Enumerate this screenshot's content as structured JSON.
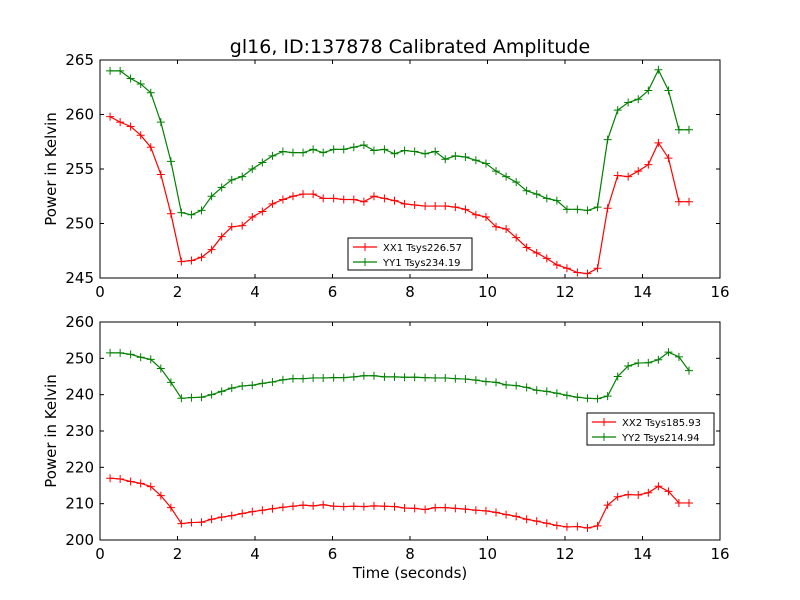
{
  "title": "gl16, ID:137878 Calibrated Amplitude",
  "chart_data": [
    {
      "type": "line",
      "ylabel": "Power in Kelvin",
      "xlabel": "",
      "xlim": [
        0,
        16
      ],
      "ylim": [
        245,
        265
      ],
      "xticks": [
        "0",
        "2",
        "4",
        "6",
        "8",
        "10",
        "12",
        "14",
        "16"
      ],
      "yticks": [
        "245",
        "250",
        "255",
        "260",
        "265"
      ],
      "legend_position": "lower-center",
      "x": [
        0.26,
        0.52,
        0.79,
        1.05,
        1.31,
        1.57,
        1.83,
        2.1,
        2.36,
        2.62,
        2.88,
        3.14,
        3.4,
        3.67,
        3.93,
        4.19,
        4.45,
        4.72,
        4.98,
        5.24,
        5.5,
        5.76,
        6.03,
        6.29,
        6.55,
        6.81,
        7.07,
        7.34,
        7.6,
        7.86,
        8.12,
        8.39,
        8.65,
        8.91,
        9.17,
        9.43,
        9.7,
        9.96,
        10.22,
        10.48,
        10.74,
        11.01,
        11.27,
        11.53,
        11.79,
        12.05,
        12.32,
        12.58,
        12.84,
        13.1,
        13.36,
        13.63,
        13.89,
        14.15,
        14.41,
        14.67,
        14.94,
        15.2
      ],
      "series": [
        {
          "name": "XX1 Tsys226.57",
          "color": "#ff0000",
          "values": [
            259.8,
            259.3,
            258.9,
            258.1,
            257.0,
            254.5,
            250.9,
            246.5,
            246.6,
            246.9,
            247.6,
            248.8,
            249.7,
            249.8,
            250.6,
            251.1,
            251.8,
            252.2,
            252.5,
            252.7,
            252.7,
            252.3,
            252.3,
            252.2,
            252.2,
            252.0,
            252.5,
            252.3,
            252.1,
            251.8,
            251.7,
            251.6,
            251.6,
            251.6,
            251.5,
            251.3,
            250.8,
            250.6,
            249.7,
            249.5,
            248.7,
            247.8,
            247.3,
            246.8,
            246.2,
            245.9,
            245.5,
            245.4,
            245.9,
            251.4,
            254.4,
            254.3,
            254.8,
            255.4,
            257.4,
            256.0,
            252.0,
            252.0
          ]
        },
        {
          "name": "YY1 Tsys234.19",
          "color": "#008000",
          "values": [
            264.0,
            264.0,
            263.3,
            262.8,
            262.0,
            259.3,
            255.7,
            251.0,
            250.8,
            251.2,
            252.5,
            253.3,
            254.0,
            254.3,
            255.0,
            255.6,
            256.2,
            256.6,
            256.5,
            256.5,
            256.8,
            256.5,
            256.8,
            256.8,
            257.0,
            257.2,
            256.7,
            256.8,
            256.4,
            256.7,
            256.6,
            256.4,
            256.6,
            255.9,
            256.2,
            256.1,
            255.8,
            255.5,
            254.8,
            254.3,
            253.8,
            253.0,
            252.7,
            252.3,
            252.1,
            251.3,
            251.3,
            251.2,
            251.5,
            257.7,
            260.4,
            261.1,
            261.4,
            262.2,
            264.1,
            262.2,
            258.6,
            258.6
          ]
        }
      ]
    },
    {
      "type": "line",
      "ylabel": "Power in Kelvin",
      "xlabel": "Time (seconds)",
      "xlim": [
        0,
        16
      ],
      "ylim": [
        200,
        260
      ],
      "xticks": [
        "0",
        "2",
        "4",
        "6",
        "8",
        "10",
        "12",
        "14",
        "16"
      ],
      "yticks": [
        "200",
        "210",
        "220",
        "230",
        "240",
        "250",
        "260"
      ],
      "legend_position": "center-right",
      "x": [
        0.26,
        0.52,
        0.79,
        1.05,
        1.31,
        1.57,
        1.83,
        2.1,
        2.36,
        2.62,
        2.88,
        3.14,
        3.4,
        3.67,
        3.93,
        4.19,
        4.45,
        4.72,
        4.98,
        5.24,
        5.5,
        5.76,
        6.03,
        6.29,
        6.55,
        6.81,
        7.07,
        7.34,
        7.6,
        7.86,
        8.12,
        8.39,
        8.65,
        8.91,
        9.17,
        9.43,
        9.7,
        9.96,
        10.22,
        10.48,
        10.74,
        11.01,
        11.27,
        11.53,
        11.79,
        12.05,
        12.32,
        12.58,
        12.84,
        13.1,
        13.36,
        13.63,
        13.89,
        14.15,
        14.41,
        14.67,
        14.94,
        15.2
      ],
      "series": [
        {
          "name": "XX2 Tsys185.93",
          "color": "#ff0000",
          "values": [
            217.0,
            216.8,
            216.1,
            215.6,
            214.7,
            212.2,
            208.9,
            204.5,
            204.8,
            204.9,
            205.7,
            206.3,
            206.7,
            207.3,
            207.8,
            208.2,
            208.6,
            209.0,
            209.3,
            209.6,
            209.4,
            209.7,
            209.3,
            209.2,
            209.3,
            209.2,
            209.4,
            209.3,
            209.2,
            208.8,
            208.7,
            208.4,
            208.9,
            208.9,
            208.7,
            208.5,
            208.2,
            208.0,
            207.6,
            207.0,
            206.5,
            205.7,
            205.2,
            204.6,
            204.0,
            203.6,
            203.7,
            203.3,
            203.9,
            209.6,
            211.9,
            212.5,
            212.4,
            213.0,
            214.8,
            213.4,
            210.2,
            210.2
          ]
        },
        {
          "name": "YY2 Tsys214.94",
          "color": "#008000",
          "values": [
            251.5,
            251.5,
            251.1,
            250.3,
            249.7,
            247.2,
            243.4,
            239.0,
            239.2,
            239.3,
            240.0,
            240.9,
            241.8,
            242.4,
            242.6,
            243.1,
            243.5,
            244.1,
            244.4,
            244.4,
            244.6,
            244.6,
            244.7,
            244.7,
            244.9,
            245.2,
            245.2,
            244.9,
            244.9,
            244.8,
            244.8,
            244.7,
            244.6,
            244.6,
            244.4,
            244.3,
            244.0,
            243.6,
            243.4,
            242.7,
            242.5,
            242.0,
            241.2,
            240.9,
            240.4,
            239.8,
            239.3,
            239.0,
            238.9,
            239.6,
            245.0,
            247.9,
            248.7,
            248.8,
            249.6,
            251.7,
            250.4,
            246.6
          ]
        }
      ]
    }
  ]
}
